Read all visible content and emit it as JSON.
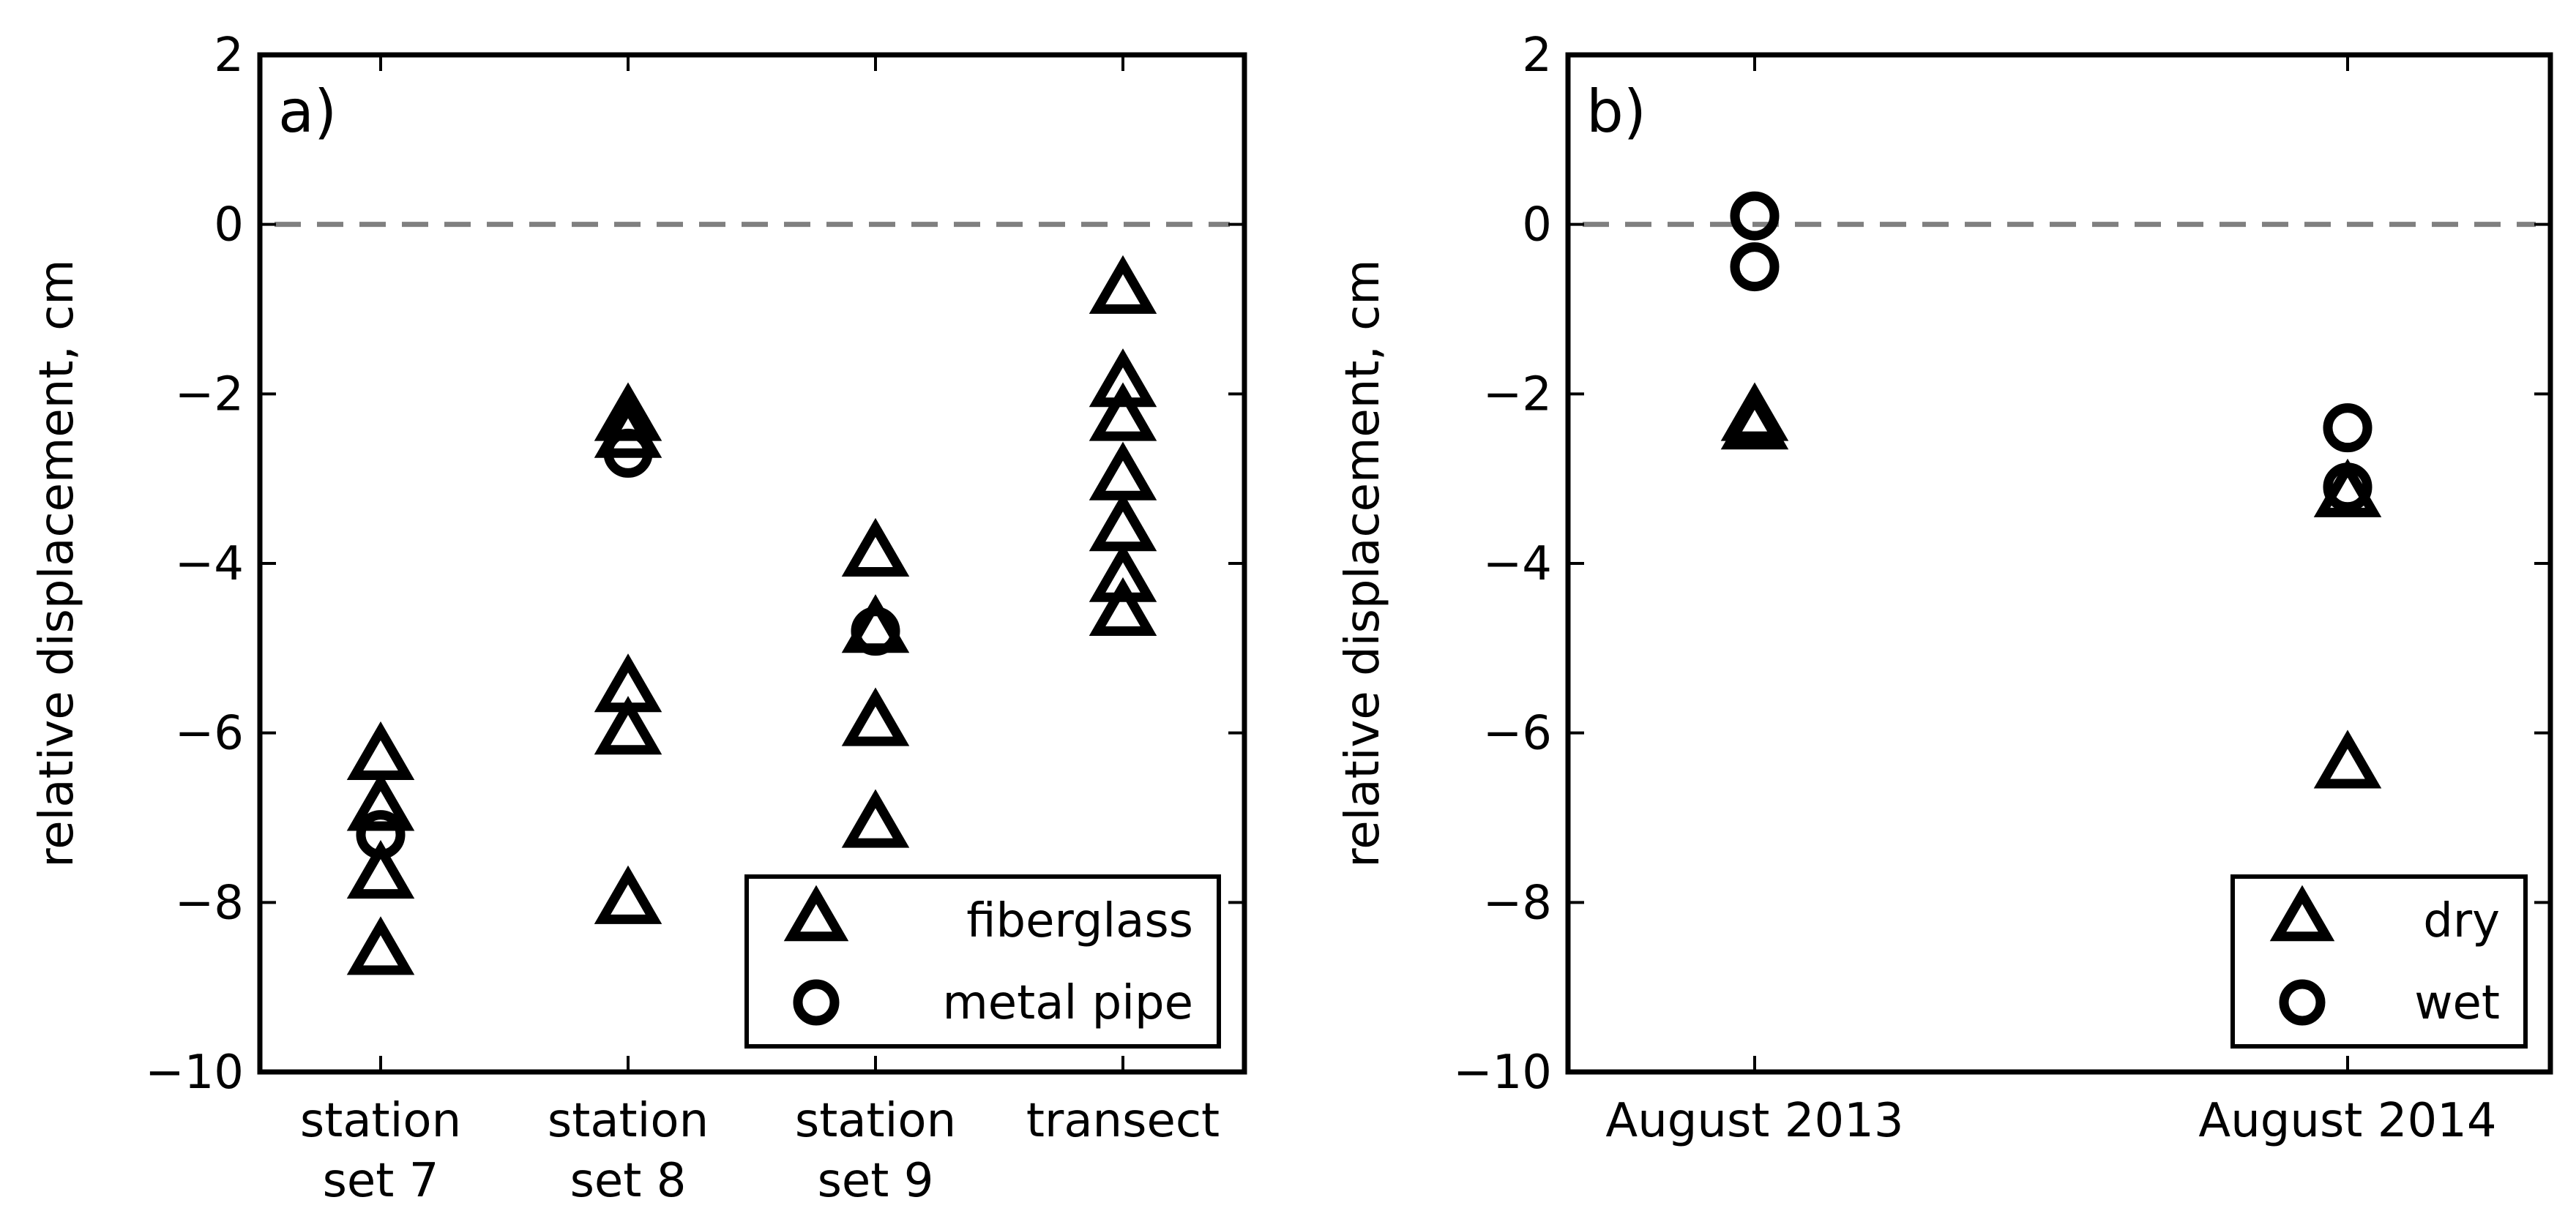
{
  "chart_data": [
    {
      "type": "scatter",
      "panel_label": "a)",
      "ylabel": "relative displacement, cm",
      "xlabel": "",
      "ylim": [
        -10,
        2
      ],
      "yticks": [
        2,
        0,
        -2,
        -4,
        -6,
        -8,
        -10
      ],
      "ytick_labels": [
        "2",
        "0",
        "−2",
        "−4",
        "−6",
        "−8",
        "−10"
      ],
      "categories": [
        {
          "line1": "station",
          "line2": "set 7"
        },
        {
          "line1": "station",
          "line2": "set 8"
        },
        {
          "line1": "station",
          "line2": "set 9"
        },
        {
          "line1": "transect",
          "line2": ""
        }
      ],
      "reference_line": {
        "y": 0,
        "style": "dashed",
        "color": "#808080"
      },
      "legend": {
        "position": "lower-right",
        "entries": [
          {
            "label": "fiberglass",
            "marker": "triangle"
          },
          {
            "label": "metal pipe",
            "marker": "circle"
          }
        ]
      },
      "series": [
        {
          "name": "fiberglass",
          "marker": "triangle",
          "points": [
            {
              "x": 0,
              "y": -6.3
            },
            {
              "x": 0,
              "y": -6.9
            },
            {
              "x": 0,
              "y": -7.7
            },
            {
              "x": 0,
              "y": -8.6
            },
            {
              "x": 1,
              "y": -2.3
            },
            {
              "x": 1,
              "y": -2.5
            },
            {
              "x": 1,
              "y": -5.5
            },
            {
              "x": 1,
              "y": -6.0
            },
            {
              "x": 1,
              "y": -8.0
            },
            {
              "x": 2,
              "y": -3.9
            },
            {
              "x": 2,
              "y": -4.8
            },
            {
              "x": 2,
              "y": -5.9
            },
            {
              "x": 2,
              "y": -7.1
            },
            {
              "x": 3,
              "y": -0.8
            },
            {
              "x": 3,
              "y": -1.9
            },
            {
              "x": 3,
              "y": -2.3
            },
            {
              "x": 3,
              "y": -3.0
            },
            {
              "x": 3,
              "y": -3.6
            },
            {
              "x": 3,
              "y": -4.2
            },
            {
              "x": 3,
              "y": -4.6
            }
          ]
        },
        {
          "name": "metal pipe",
          "marker": "circle",
          "points": [
            {
              "x": 0,
              "y": -7.2
            },
            {
              "x": 1,
              "y": -2.7
            },
            {
              "x": 2,
              "y": -4.8
            }
          ]
        }
      ]
    },
    {
      "type": "scatter",
      "panel_label": "b)",
      "ylabel": "relative displacement, cm",
      "xlabel": "",
      "ylim": [
        -10,
        2
      ],
      "yticks": [
        2,
        0,
        -2,
        -4,
        -6,
        -8,
        -10
      ],
      "ytick_labels": [
        "2",
        "0",
        "−2",
        "−4",
        "−6",
        "−8",
        "−10"
      ],
      "categories": [
        {
          "line1": "August 2013",
          "line2": ""
        },
        {
          "line1": "August 2014",
          "line2": ""
        }
      ],
      "reference_line": {
        "y": 0,
        "style": "dashed",
        "color": "#808080"
      },
      "legend": {
        "position": "lower-right",
        "entries": [
          {
            "label": "dry",
            "marker": "triangle"
          },
          {
            "label": "wet",
            "marker": "circle"
          }
        ]
      },
      "series": [
        {
          "name": "dry",
          "marker": "triangle",
          "points": [
            {
              "x": 0,
              "y": -2.3
            },
            {
              "x": 0,
              "y": -2.4
            },
            {
              "x": 1,
              "y": -3.2
            },
            {
              "x": 1,
              "y": -6.4
            }
          ]
        },
        {
          "name": "wet",
          "marker": "circle",
          "points": [
            {
              "x": 0,
              "y": 0.1
            },
            {
              "x": 0,
              "y": -0.5
            },
            {
              "x": 1,
              "y": -2.4
            },
            {
              "x": 1,
              "y": -3.1
            }
          ]
        }
      ]
    }
  ]
}
